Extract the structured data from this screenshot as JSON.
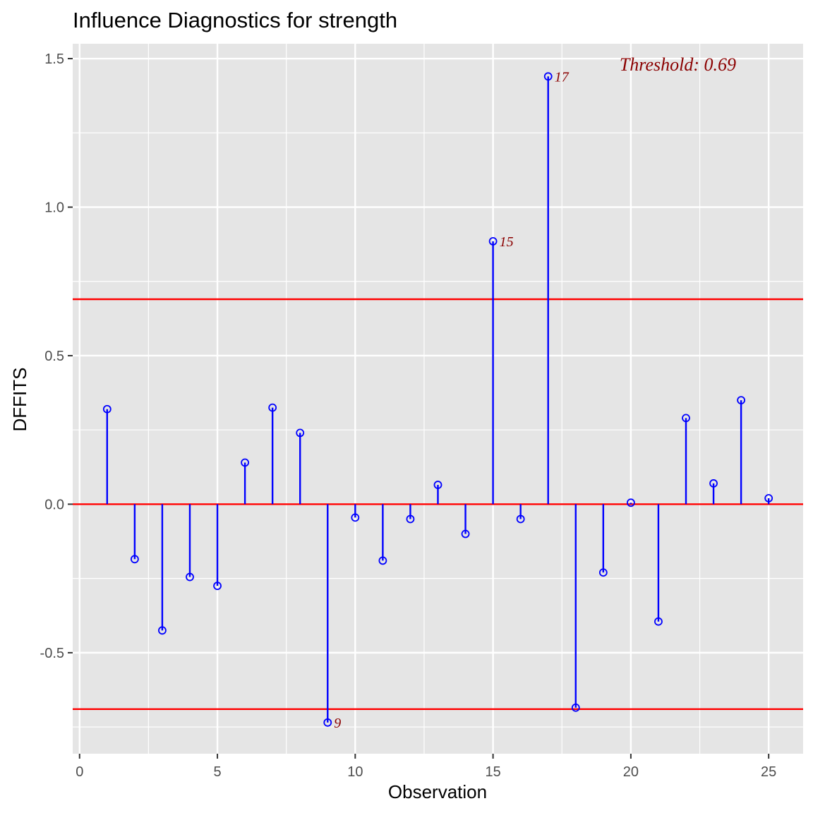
{
  "chart_data": {
    "type": "lollipop",
    "title": "Influence Diagnostics for strength",
    "xlabel": "Observation",
    "ylabel": "DFFITS",
    "xlim": [
      -0.25,
      26.25
    ],
    "ylim": [
      -0.84,
      1.55
    ],
    "x_ticks": [
      {
        "value": 0,
        "label": "0"
      },
      {
        "value": 5,
        "label": "5"
      },
      {
        "value": 10,
        "label": "10"
      },
      {
        "value": 15,
        "label": "15"
      },
      {
        "value": 20,
        "label": "20"
      },
      {
        "value": 25,
        "label": "25"
      }
    ],
    "y_ticks": [
      {
        "value": -0.5,
        "label": "-0.5"
      },
      {
        "value": 0.0,
        "label": "0.0"
      },
      {
        "value": 0.5,
        "label": "0.5"
      },
      {
        "value": 1.0,
        "label": "1.0"
      },
      {
        "value": 1.5,
        "label": "1.5"
      }
    ],
    "x_minor_ticks": [
      2.5,
      7.5,
      12.5,
      17.5,
      22.5
    ],
    "y_minor_ticks": [
      -0.75,
      -0.25,
      0.25,
      0.75,
      1.25
    ],
    "grid": true,
    "points": [
      {
        "x": 1,
        "y": 0.32
      },
      {
        "x": 2,
        "y": -0.185
      },
      {
        "x": 3,
        "y": -0.425
      },
      {
        "x": 4,
        "y": -0.245
      },
      {
        "x": 5,
        "y": -0.275
      },
      {
        "x": 6,
        "y": 0.14
      },
      {
        "x": 7,
        "y": 0.325
      },
      {
        "x": 8,
        "y": 0.24
      },
      {
        "x": 9,
        "y": -0.735,
        "label": "9"
      },
      {
        "x": 10,
        "y": -0.045
      },
      {
        "x": 11,
        "y": -0.19
      },
      {
        "x": 12,
        "y": -0.05
      },
      {
        "x": 13,
        "y": 0.065
      },
      {
        "x": 14,
        "y": -0.1
      },
      {
        "x": 15,
        "y": 0.885,
        "label": "15"
      },
      {
        "x": 16,
        "y": -0.05
      },
      {
        "x": 17,
        "y": 1.44,
        "label": "17"
      },
      {
        "x": 18,
        "y": -0.685
      },
      {
        "x": 19,
        "y": -0.23
      },
      {
        "x": 20,
        "y": 0.005
      },
      {
        "x": 21,
        "y": -0.395
      },
      {
        "x": 22,
        "y": 0.29
      },
      {
        "x": 23,
        "y": 0.07
      },
      {
        "x": 24,
        "y": 0.35
      },
      {
        "x": 25,
        "y": 0.02
      }
    ],
    "threshold": 0.69,
    "threshold_text": "Threshold: 0.69",
    "threshold_label_position": "top-right",
    "colors": {
      "panel_background": "#e5e5e5",
      "grid": "#ffffff",
      "stems_and_points": "#0000ff",
      "reference_lines": "#ff0000",
      "annotation_text": "#8b0000"
    }
  }
}
